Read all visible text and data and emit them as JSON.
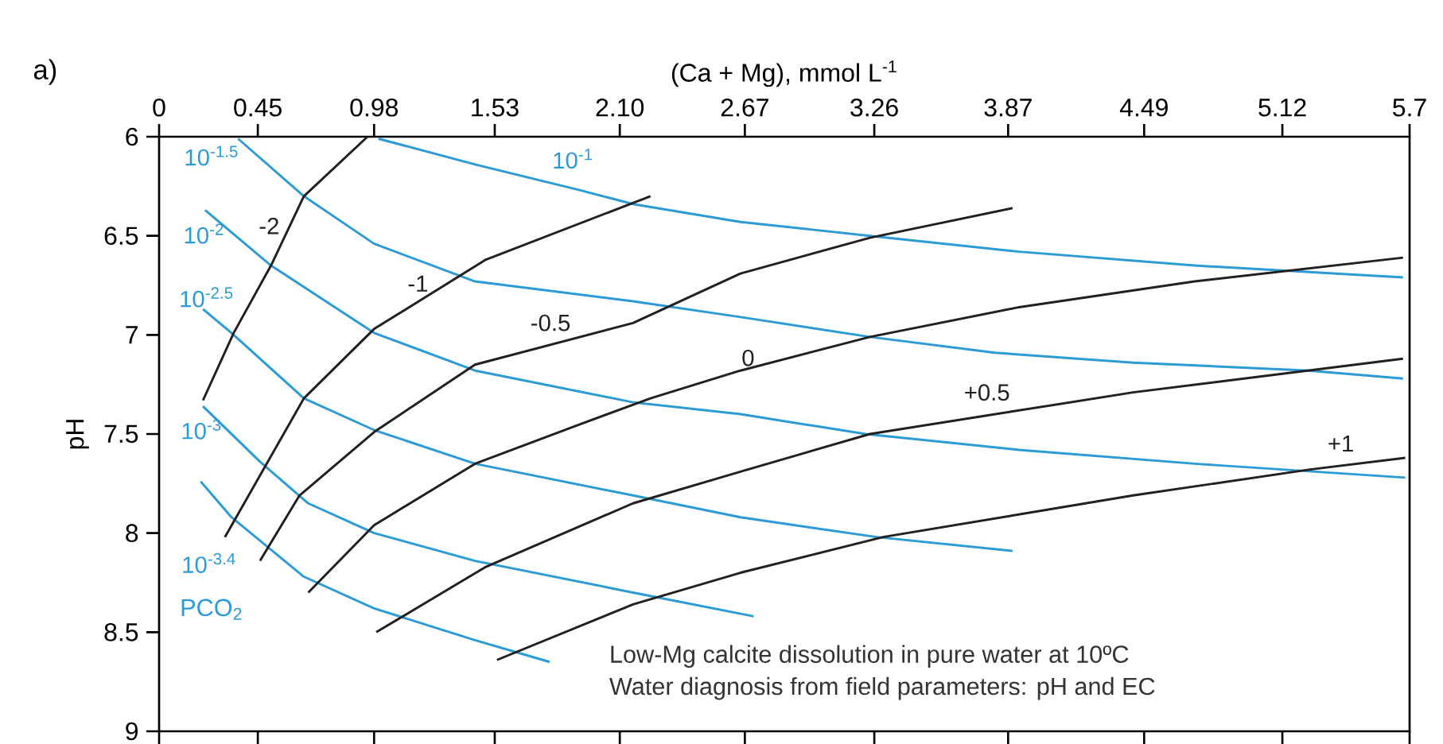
{
  "chart_data": {
    "type": "line",
    "title": "a)",
    "xlabel": "(Ca + Mg), mmol L$^{-1}$",
    "ylabel": "pH",
    "xlim": [
      0,
      5.7
    ],
    "xticks": [
      0,
      0.45,
      0.98,
      1.53,
      {
        "value": 2.1,
        "label": "2.10"
      },
      2.67,
      3.26,
      3.87,
      4.49,
      5.12,
      5.7
    ],
    "ylim": [
      9,
      6
    ],
    "yticks": [
      6,
      6.5,
      7,
      7.5,
      8,
      8.5,
      9
    ],
    "marker": "none",
    "line_style": "solid",
    "series": [
      {
        "name": "10$^{-1}$",
        "color": "#2b9bd6",
        "x": [
          1.0,
          1.44,
          1.92,
          2.16,
          2.65,
          3.24,
          3.92,
          4.72,
          5.67
        ],
        "values": [
          6.01,
          6.14,
          6.27,
          6.34,
          6.43,
          6.5,
          6.58,
          6.65,
          6.71
        ]
      },
      {
        "name": "10$^{-1.5}$",
        "color": "#2b9bd6",
        "x": [
          0.36,
          0.66,
          0.98,
          1.44,
          2.16,
          2.65,
          3.24,
          3.81,
          4.44,
          5.24,
          5.67
        ],
        "values": [
          6.01,
          6.3,
          6.54,
          6.73,
          6.83,
          6.91,
          7.01,
          7.09,
          7.14,
          7.18,
          7.22
        ]
      },
      {
        "name": "10$^{-2}$",
        "color": "#2b9bd6",
        "x": [
          0.21,
          0.51,
          0.98,
          1.44,
          2.16,
          2.65,
          3.22,
          3.92,
          4.72,
          5.68
        ],
        "values": [
          6.37,
          6.65,
          6.99,
          7.18,
          7.34,
          7.4,
          7.5,
          7.58,
          7.65,
          7.72
        ]
      },
      {
        "name": "10$^{-2.5}$",
        "color": "#2b9bd6",
        "x": [
          0.2,
          0.33,
          0.66,
          0.98,
          1.44,
          2.16,
          2.65,
          3.27,
          3.89
        ],
        "values": [
          6.87,
          6.99,
          7.32,
          7.48,
          7.65,
          7.81,
          7.92,
          8.02,
          8.09
        ]
      },
      {
        "name": "10$^{-3}$",
        "color": "#2b9bd6",
        "x": [
          0.2,
          0.46,
          0.68,
          0.98,
          1.44,
          2.16,
          2.71
        ],
        "values": [
          7.36,
          7.64,
          7.85,
          8.0,
          8.14,
          8.3,
          8.42
        ]
      },
      {
        "name": "10$^{-3.4}$",
        "color": "#2b9bd6",
        "x": [
          0.19,
          0.33,
          0.66,
          0.98,
          1.44,
          1.78
        ],
        "values": [
          7.74,
          7.92,
          8.22,
          8.38,
          8.54,
          8.65
        ]
      },
      {
        "name": "-2",
        "color": "#231f20",
        "x": [
          0.2,
          0.34,
          0.51,
          0.66,
          0.95
        ],
        "values": [
          7.33,
          6.99,
          6.65,
          6.3,
          6.0
        ]
      },
      {
        "name": "-1",
        "color": "#231f20",
        "x": [
          0.3,
          0.66,
          0.98,
          1.49,
          2.24
        ],
        "values": [
          8.02,
          7.32,
          6.97,
          6.62,
          6.3
        ]
      },
      {
        "name": "-0.5",
        "color": "#231f20",
        "x": [
          0.46,
          0.64,
          0.98,
          1.44,
          2.16,
          2.65,
          3.24,
          3.89
        ],
        "values": [
          8.14,
          7.81,
          7.49,
          7.15,
          6.94,
          6.69,
          6.51,
          6.36
        ]
      },
      {
        "name": "0",
        "color": "#231f20",
        "x": [
          0.68,
          0.98,
          1.44,
          1.92,
          2.24,
          2.65,
          3.24,
          3.92,
          4.72,
          5.67
        ],
        "values": [
          8.3,
          7.96,
          7.65,
          7.45,
          7.32,
          7.18,
          7.01,
          6.86,
          6.73,
          6.61
        ]
      },
      {
        "name": "+0.5",
        "color": "#231f20",
        "x": [
          0.99,
          1.49,
          2.16,
          2.65,
          3.24,
          4.44,
          5.67
        ],
        "values": [
          8.5,
          8.17,
          7.85,
          7.69,
          7.5,
          7.29,
          7.12
        ]
      },
      {
        "name": "+1",
        "color": "#231f20",
        "x": [
          1.54,
          2.16,
          2.65,
          3.3,
          4.44,
          5.24,
          5.68
        ],
        "values": [
          8.64,
          8.36,
          8.2,
          8.02,
          7.81,
          7.68,
          7.62
        ]
      }
    ],
    "annotations": [
      "PCO$_{2}$",
      "Low-Mg calcite dissolution in pure water at 10ºC",
      "Water diagnosis from field parameters: pH and EC"
    ]
  }
}
